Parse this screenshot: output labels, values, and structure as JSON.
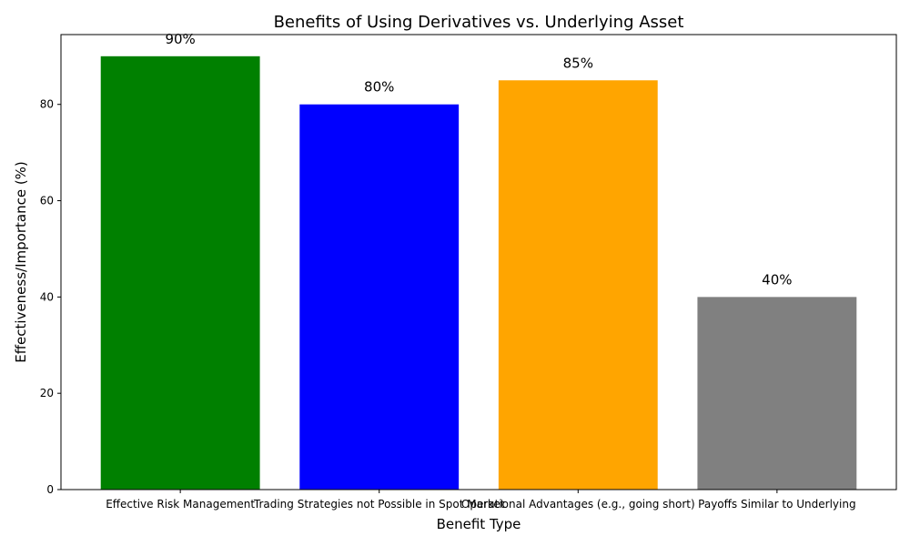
{
  "chart_data": {
    "type": "bar",
    "title": "Benefits of Using Derivatives vs. Underlying Asset",
    "xlabel": "Benefit Type",
    "ylabel": "Effectiveness/Importance (%)",
    "categories": [
      "Effective Risk Management",
      "Trading Strategies not Possible in Spot Market",
      "Operational Advantages (e.g., going short)",
      "Payoffs Similar to Underlying"
    ],
    "values": [
      90,
      80,
      85,
      40
    ],
    "data_labels": [
      "90%",
      "80%",
      "85%",
      "40%"
    ],
    "colors": [
      "#008000",
      "#0000ff",
      "#ffa500",
      "#808080"
    ],
    "ylim": [
      0,
      94.5
    ],
    "yticks": [
      0,
      20,
      40,
      60,
      80
    ],
    "grid": false,
    "legend": "none"
  }
}
